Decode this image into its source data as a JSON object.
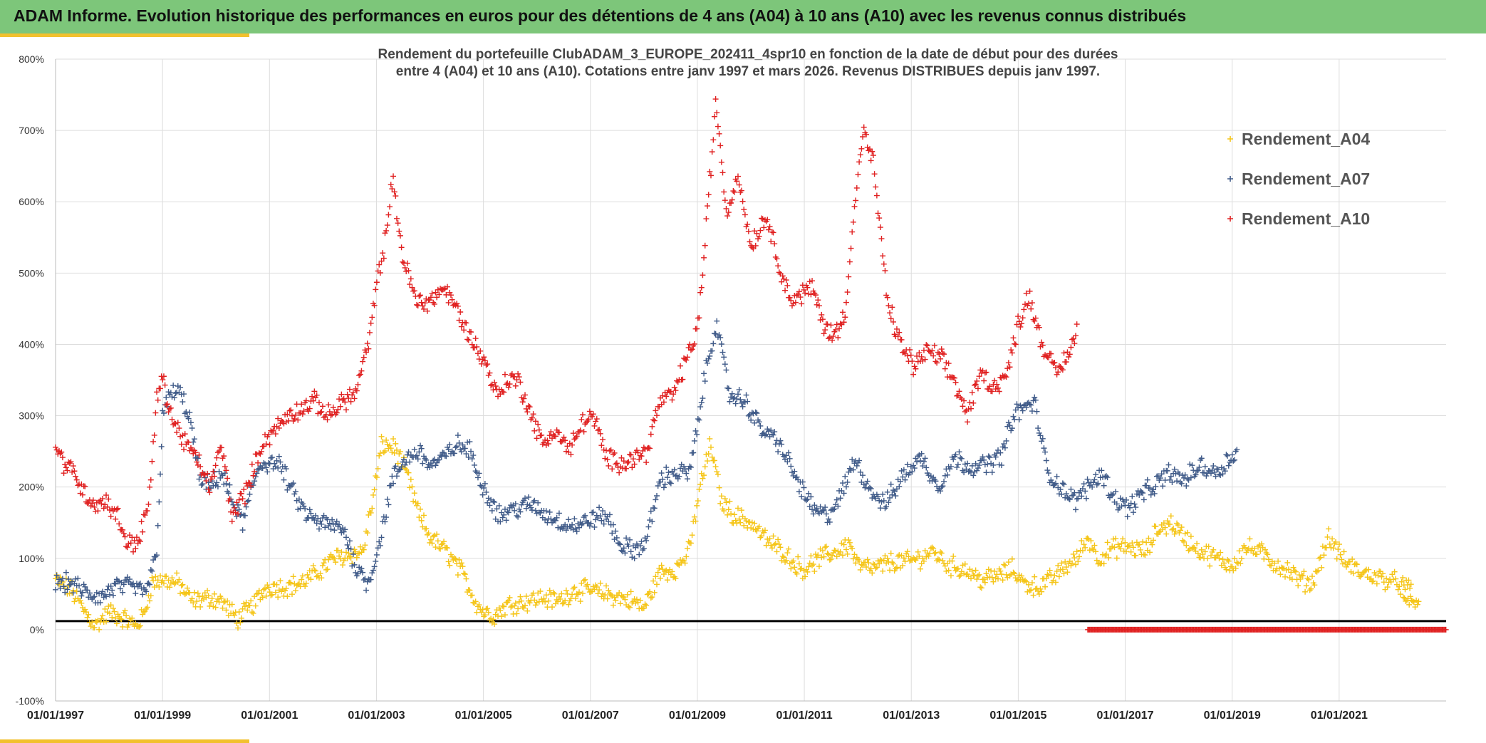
{
  "header": {
    "title": "ADAM Informe. Evolution historique des performances en euros pour des détentions de 4 ans (A04) à 10 ans (A10) avec les revenus connus distribués",
    "background": "#7dc67a",
    "accent": "#f2c12e"
  },
  "chart_data": {
    "type": "scatter",
    "title_line1": "Rendement du portefeuille ClubADAM_3_EUROPE_202411_4spr10  en fonction de la date de début pour des durées",
    "title_line2": "entre 4 (A04) et 10 ans (A10). Cotations entre janv 1997 et mars 2026. Revenus DISTRIBUES depuis janv 1997.",
    "x_range": [
      1997.0,
      2023.0
    ],
    "ylim": [
      -100,
      800
    ],
    "y_ticks": [
      -100,
      0,
      100,
      200,
      300,
      400,
      500,
      600,
      700,
      800
    ],
    "y_tick_labels": [
      "-100%",
      "0%",
      "100%",
      "200%",
      "300%",
      "400%",
      "500%",
      "600%",
      "700%",
      "800%"
    ],
    "x_ticks": [
      1997,
      1999,
      2001,
      2003,
      2005,
      2007,
      2009,
      2011,
      2013,
      2015,
      2017,
      2019,
      2021
    ],
    "x_tick_labels": [
      "01/01/1997",
      "01/01/1999",
      "01/01/2001",
      "01/01/2003",
      "01/01/2005",
      "01/01/2007",
      "01/01/2009",
      "01/01/2011",
      "01/01/2013",
      "01/01/2015",
      "01/01/2017",
      "01/01/2019",
      "01/01/2021"
    ],
    "grid": true,
    "reference_line": 12,
    "legend_position": "top-right",
    "series": [
      {
        "name": "Rendement_A04",
        "color": "#f5c518",
        "x": [
          1997.0,
          1997.3,
          1997.55,
          1997.75,
          1998.0,
          1998.3,
          1998.5,
          1998.65,
          1998.8,
          1999.0,
          1999.3,
          1999.55,
          1999.9,
          2000.1,
          2000.4,
          2000.7,
          2000.95,
          2001.3,
          2001.6,
          2001.9,
          2002.2,
          2002.5,
          2002.75,
          2002.95,
          2003.1,
          2003.35,
          2003.6,
          2003.8,
          2004.0,
          2004.3,
          2004.6,
          2004.85,
          2005.0,
          2005.2,
          2005.45,
          2005.8,
          2006.1,
          2006.4,
          2006.7,
          2007.0,
          2007.3,
          2007.55,
          2007.8,
          2008.0,
          2008.3,
          2008.6,
          2008.85,
          2009.05,
          2009.25,
          2009.45,
          2009.7,
          2010.0,
          2010.3,
          2010.6,
          2010.85,
          2011.0,
          2011.3,
          2011.6,
          2011.85,
          2012.0,
          2012.3,
          2012.6,
          2012.9,
          2013.15,
          2013.4,
          2013.7,
          2014.0,
          2014.3,
          2014.6,
          2014.9,
          2015.1,
          2015.4,
          2015.7,
          2015.9,
          2016.1,
          2016.3,
          2016.5,
          2016.8,
          2017.1,
          2017.4,
          2017.6,
          2017.85,
          2018.1,
          2018.4,
          2018.7,
          2019.0,
          2019.25,
          2019.5,
          2019.75,
          2020.0,
          2020.25,
          2020.5,
          2020.8,
          2021.1,
          2021.4,
          2021.65,
          2021.9,
          2022.1,
          2022.35
        ],
        "y": [
          70,
          55,
          25,
          5,
          25,
          15,
          5,
          20,
          65,
          70,
          65,
          40,
          45,
          40,
          15,
          35,
          60,
          60,
          65,
          80,
          100,
          105,
          110,
          190,
          260,
          255,
          210,
          160,
          130,
          110,
          80,
          40,
          25,
          20,
          35,
          40,
          45,
          40,
          55,
          55,
          50,
          45,
          40,
          30,
          80,
          85,
          110,
          200,
          260,
          180,
          160,
          150,
          125,
          110,
          90,
          85,
          100,
          110,
          120,
          90,
          85,
          95,
          95,
          100,
          110,
          90,
          85,
          70,
          75,
          85,
          65,
          60,
          75,
          90,
          100,
          130,
          100,
          115,
          115,
          110,
          140,
          150,
          130,
          110,
          100,
          90,
          115,
          110,
          95,
          85,
          70,
          65,
          130,
          95,
          80,
          75,
          70,
          65,
          55
        ],
        "extra": {
          "x_tail": [
            2022.2,
            2022.35,
            2022.5
          ],
          "y_tail": [
            45,
            40,
            35
          ]
        }
      },
      {
        "name": "Rendement_A07",
        "color": "#3f5a88",
        "x": [
          1997.0,
          1997.3,
          1997.6,
          1997.85,
          1998.1,
          1998.4,
          1998.6,
          1998.75,
          1998.9,
          1999.0,
          1999.15,
          1999.3,
          1999.5,
          1999.7,
          1999.9,
          2000.1,
          2000.3,
          2000.5,
          2000.8,
          2001.0,
          2001.2,
          2001.45,
          2001.7,
          2001.95,
          2002.2,
          2002.4,
          2002.6,
          2002.85,
          2003.05,
          2003.3,
          2003.55,
          2003.8,
          2004.0,
          2004.25,
          2004.5,
          2004.75,
          2005.0,
          2005.3,
          2005.6,
          2005.9,
          2006.2,
          2006.5,
          2006.8,
          2007.0,
          2007.3,
          2007.55,
          2007.8,
          2008.05,
          2008.3,
          2008.6,
          2008.85,
          2009.0,
          2009.15,
          2009.35,
          2009.6,
          2009.9,
          2010.2,
          2010.5,
          2010.8,
          2011.0,
          2011.2,
          2011.45,
          2011.7,
          2011.95,
          2012.2,
          2012.5,
          2012.8,
          2013.0,
          2013.2,
          2013.5,
          2013.8,
          2014.1,
          2014.4,
          2014.7,
          2014.9,
          2015.1,
          2015.3,
          2015.55,
          2015.8,
          2016.05,
          2016.3,
          2016.55,
          2016.8,
          2017.05,
          2017.3,
          2017.55,
          2017.8,
          2018.1,
          2018.4,
          2018.7,
          2018.95,
          2019.1
        ],
        "y": [
          65,
          65,
          50,
          45,
          60,
          60,
          55,
          60,
          120,
          300,
          330,
          335,
          300,
          210,
          200,
          220,
          180,
          150,
          230,
          235,
          230,
          190,
          160,
          150,
          145,
          140,
          90,
          65,
          120,
          210,
          240,
          250,
          230,
          240,
          260,
          250,
          200,
          160,
          170,
          175,
          160,
          150,
          145,
          155,
          160,
          120,
          110,
          125,
          210,
          220,
          220,
          280,
          360,
          430,
          330,
          320,
          280,
          265,
          220,
          190,
          165,
          160,
          190,
          240,
          200,
          175,
          210,
          230,
          240,
          200,
          240,
          230,
          230,
          245,
          300,
          310,
          320,
          220,
          200,
          180,
          200,
          220,
          185,
          170,
          190,
          200,
          220,
          210,
          230,
          220,
          240,
          250
        ]
      },
      {
        "name": "Rendement_A10",
        "color": "#e02020",
        "x": [
          1997.0,
          1997.15,
          1997.35,
          1997.55,
          1997.75,
          1997.95,
          1998.15,
          1998.35,
          1998.55,
          1998.75,
          1998.9,
          1999.0,
          1999.2,
          1999.45,
          1999.7,
          1999.9,
          2000.1,
          2000.3,
          2000.6,
          2000.85,
          2001.1,
          2001.35,
          2001.6,
          2001.85,
          2002.1,
          2002.35,
          2002.6,
          2002.85,
          2003.0,
          2003.15,
          2003.3,
          2003.5,
          2003.75,
          2004.0,
          2004.25,
          2004.5,
          2004.75,
          2005.0,
          2005.25,
          2005.45,
          2005.65,
          2005.9,
          2006.1,
          2006.35,
          2006.6,
          2006.85,
          2007.05,
          2007.3,
          2007.55,
          2007.8,
          2008.05,
          2008.3,
          2008.55,
          2008.8,
          2009.0,
          2009.1,
          2009.2,
          2009.35,
          2009.55,
          2009.75,
          2010.0,
          2010.15,
          2010.3,
          2010.5,
          2010.75,
          2010.95,
          2011.15,
          2011.35,
          2011.55,
          2011.75,
          2011.95,
          2012.1,
          2012.3,
          2012.55,
          2012.8,
          2013.05,
          2013.3,
          2013.55,
          2013.8,
          2014.05,
          2014.3,
          2014.55,
          2014.8,
          2015.0,
          2015.2,
          2015.45,
          2015.7,
          2015.9,
          2016.1
        ],
        "y": [
          255,
          235,
          220,
          190,
          175,
          180,
          160,
          120,
          125,
          180,
          330,
          350,
          290,
          260,
          230,
          200,
          260,
          160,
          200,
          260,
          280,
          300,
          310,
          320,
          300,
          320,
          330,
          400,
          480,
          540,
          630,
          520,
          460,
          460,
          480,
          450,
          410,
          380,
          330,
          350,
          350,
          300,
          260,
          280,
          250,
          290,
          300,
          240,
          235,
          240,
          250,
          320,
          330,
          380,
          420,
          500,
          600,
          740,
          580,
          640,
          540,
          560,
          580,
          520,
          460,
          470,
          480,
          430,
          410,
          440,
          600,
          700,
          650,
          460,
          400,
          370,
          390,
          380,
          350,
          300,
          360,
          340,
          360,
          430,
          470,
          400,
          360,
          380,
          420
        ],
        "zero_band": [
          2016.3,
          2023.0
        ]
      }
    ]
  }
}
